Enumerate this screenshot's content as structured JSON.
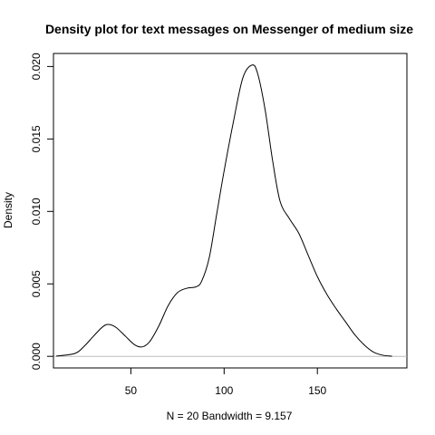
{
  "chart_data": {
    "type": "line",
    "title": "Density plot for text messages on Messenger of medium size",
    "xlabel": "N = 20   Bandwidth = 9.157",
    "ylabel": "Density",
    "xlim": [
      8.5,
      198
    ],
    "ylim": [
      -0.0008,
      0.0209
    ],
    "x_ticks": [
      50,
      100,
      150
    ],
    "y_ticks": [
      0.0,
      0.005,
      0.01,
      0.015,
      0.02
    ],
    "y_tick_labels": [
      "0.000",
      "0.005",
      "0.010",
      "0.015",
      "0.020"
    ],
    "grid": false,
    "baseline": {
      "y": 0,
      "color": "#bebebe"
    },
    "series": [
      {
        "color": "#000000",
        "x": [
          10,
          20,
          25,
          30,
          35,
          38,
          42,
          47,
          52,
          56,
          60,
          65,
          70,
          75,
          80,
          85,
          88,
          92,
          96,
          100,
          105,
          110,
          115,
          118,
          122,
          126,
          130,
          135,
          140,
          145,
          150,
          155,
          160,
          165,
          170,
          175,
          180,
          185,
          190
        ],
        "y": [
          2e-05,
          0.0002,
          0.0007,
          0.0014,
          0.00205,
          0.0022,
          0.002,
          0.0014,
          0.0008,
          0.00065,
          0.001,
          0.0021,
          0.0035,
          0.0044,
          0.0047,
          0.0048,
          0.0052,
          0.0068,
          0.0098,
          0.0128,
          0.0162,
          0.0192,
          0.0201,
          0.0195,
          0.017,
          0.0135,
          0.0107,
          0.0095,
          0.0085,
          0.007,
          0.0055,
          0.0043,
          0.0033,
          0.0024,
          0.0015,
          0.0008,
          0.0003,
          8e-05,
          1e-05
        ]
      }
    ]
  },
  "colors": {
    "background": "#ffffff",
    "axis": "#000000",
    "baseline": "#bebebe",
    "series": "#000000"
  }
}
